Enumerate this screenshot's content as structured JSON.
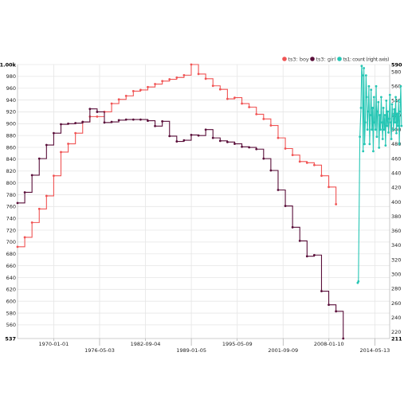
{
  "chart_data": {
    "type": "line",
    "x_axis": {
      "tick_labels": [
        "1970-01-01",
        "1976-05-03",
        "1982-09-04",
        "1989-01-05",
        "1995-05-09",
        "2001-09-09",
        "2008-01-10",
        "2014-05-13"
      ],
      "staggered": true,
      "range": [
        "1965-01-01",
        "2016-06-01"
      ]
    },
    "y_left": {
      "range": [
        537,
        1000
      ],
      "min_label": "537",
      "max_label": "1.00k",
      "tick_labels": [
        "560",
        "580",
        "600",
        "620",
        "640",
        "660",
        "680",
        "700",
        "720",
        "740",
        "760",
        "780",
        "800",
        "820",
        "840",
        "860",
        "880",
        "900",
        "920",
        "940",
        "960",
        "980"
      ]
    },
    "y_right": {
      "range": [
        211,
        590
      ],
      "min_label": "211",
      "max_label": "590",
      "tick_labels": [
        "220",
        "240",
        "260",
        "280",
        "300",
        "320",
        "340",
        "360",
        "380",
        "400",
        "420",
        "440",
        "460",
        "480",
        "500",
        "520",
        "540",
        "560",
        "580"
      ]
    },
    "grid": true,
    "legend_position": "top-right",
    "series": [
      {
        "name": "ts3: boy",
        "color": "#f05454",
        "axis": "left",
        "step": true,
        "points": [
          [
            1965.0,
            692
          ],
          [
            1966.0,
            708
          ],
          [
            1967.0,
            733
          ],
          [
            1968.0,
            756
          ],
          [
            1969.0,
            778
          ],
          [
            1970.0,
            812
          ],
          [
            1971.0,
            852
          ],
          [
            1972.0,
            866
          ],
          [
            1973.0,
            884
          ],
          [
            1974.0,
            903
          ],
          [
            1975.0,
            912
          ],
          [
            1976.0,
            912
          ],
          [
            1977.0,
            920
          ],
          [
            1978.0,
            934
          ],
          [
            1979.0,
            941
          ],
          [
            1980.0,
            947
          ],
          [
            1981.0,
            955
          ],
          [
            1982.0,
            957
          ],
          [
            1983.0,
            962
          ],
          [
            1984.0,
            967
          ],
          [
            1985.0,
            972
          ],
          [
            1986.0,
            975
          ],
          [
            1987.0,
            978
          ],
          [
            1988.0,
            982
          ],
          [
            1989.0,
            1000
          ],
          [
            1990.0,
            984
          ],
          [
            1991.0,
            976
          ],
          [
            1992.0,
            964
          ],
          [
            1993.0,
            958
          ],
          [
            1994.0,
            942
          ],
          [
            1995.0,
            944
          ],
          [
            1996.0,
            934
          ],
          [
            1997.0,
            928
          ],
          [
            1998.0,
            916
          ],
          [
            1999.0,
            908
          ],
          [
            2000.0,
            897
          ],
          [
            2001.0,
            876
          ],
          [
            2002.0,
            858
          ],
          [
            2003.0,
            847
          ],
          [
            2004.0,
            836
          ],
          [
            2005.0,
            834
          ],
          [
            2006.0,
            830
          ],
          [
            2007.0,
            812
          ],
          [
            2008.0,
            793
          ],
          [
            2009.0,
            764
          ]
        ]
      },
      {
        "name": "ts3: girl",
        "color": "#5a0f3a",
        "axis": "left",
        "step": true,
        "points": [
          [
            1965.0,
            766
          ],
          [
            1966.0,
            784
          ],
          [
            1967.0,
            813
          ],
          [
            1968.0,
            841
          ],
          [
            1969.0,
            864
          ],
          [
            1970.0,
            884
          ],
          [
            1971.0,
            899
          ],
          [
            1972.0,
            900
          ],
          [
            1973.0,
            901
          ],
          [
            1974.0,
            903
          ],
          [
            1975.0,
            925
          ],
          [
            1976.0,
            920
          ],
          [
            1977.0,
            902
          ],
          [
            1978.0,
            903
          ],
          [
            1979.0,
            906
          ],
          [
            1980.0,
            907
          ],
          [
            1981.0,
            907
          ],
          [
            1982.0,
            907
          ],
          [
            1983.0,
            905
          ],
          [
            1984.0,
            896
          ],
          [
            1985.0,
            904
          ],
          [
            1986.0,
            879
          ],
          [
            1987.0,
            870
          ],
          [
            1988.0,
            872
          ],
          [
            1989.0,
            881
          ],
          [
            1990.0,
            880
          ],
          [
            1991.0,
            890
          ],
          [
            1992.0,
            876
          ],
          [
            1993.0,
            871
          ],
          [
            1994.0,
            869
          ],
          [
            1995.0,
            866
          ],
          [
            1996.0,
            861
          ],
          [
            1997.0,
            860
          ],
          [
            1998.0,
            857
          ],
          [
            1999.0,
            841
          ],
          [
            2000.0,
            821
          ],
          [
            2001.0,
            788
          ],
          [
            2002.0,
            761
          ],
          [
            2003.0,
            725
          ],
          [
            2004.0,
            702
          ],
          [
            2005.0,
            676
          ],
          [
            2006.0,
            678
          ],
          [
            2007.0,
            617
          ],
          [
            2008.0,
            594
          ],
          [
            2009.0,
            583
          ],
          [
            2010.0,
            537
          ]
        ]
      },
      {
        "name": "ts1: count (right axis)",
        "color": "#26c6b4",
        "axis": "right",
        "step": false,
        "points": [
          [
            2012.0,
            288
          ],
          [
            2012.1,
            290
          ],
          [
            2012.3,
            490
          ],
          [
            2012.45,
            530
          ],
          [
            2012.55,
            588
          ],
          [
            2012.65,
            575
          ],
          [
            2012.75,
            470
          ],
          [
            2012.85,
            585
          ],
          [
            2012.95,
            480
          ],
          [
            2013.05,
            510
          ],
          [
            2013.15,
            575
          ],
          [
            2013.25,
            545
          ],
          [
            2013.35,
            500
          ],
          [
            2013.45,
            525
          ],
          [
            2013.55,
            560
          ],
          [
            2013.65,
            480
          ],
          [
            2013.75,
            520
          ],
          [
            2013.85,
            555
          ],
          [
            2013.95,
            500
          ],
          [
            2014.05,
            530
          ],
          [
            2014.15,
            470
          ],
          [
            2014.25,
            545
          ],
          [
            2014.35,
            510
          ],
          [
            2014.45,
            500
          ],
          [
            2014.55,
            560
          ],
          [
            2014.65,
            490
          ],
          [
            2014.75,
            525
          ],
          [
            2014.85,
            538
          ],
          [
            2014.95,
            475
          ],
          [
            2015.05,
            520
          ],
          [
            2015.15,
            500
          ],
          [
            2015.25,
            545
          ],
          [
            2015.35,
            510
          ],
          [
            2015.45,
            487
          ],
          [
            2015.55,
            530
          ],
          [
            2015.65,
            500
          ],
          [
            2015.75,
            520
          ],
          [
            2015.85,
            478
          ],
          [
            2015.95,
            540
          ],
          [
            2016.05,
            505
          ],
          [
            2016.15,
            525
          ],
          [
            2016.25,
            496
          ],
          [
            2016.35,
            515
          ],
          [
            2016.45,
            548
          ],
          [
            2016.55,
            510
          ],
          [
            2016.65,
            487
          ],
          [
            2016.75,
            535
          ],
          [
            2016.85,
            520
          ],
          [
            2016.95,
            500
          ],
          [
            2017.05,
            528
          ],
          [
            2017.15,
            510
          ],
          [
            2017.25,
            545
          ],
          [
            2017.35,
            495
          ],
          [
            2017.45,
            522
          ],
          [
            2017.55,
            505
          ],
          [
            2017.65,
            540
          ],
          [
            2017.75,
            480
          ],
          [
            2017.85,
            525
          ],
          [
            2017.95,
            560
          ],
          [
            2018.05,
            505
          ]
        ]
      }
    ]
  }
}
